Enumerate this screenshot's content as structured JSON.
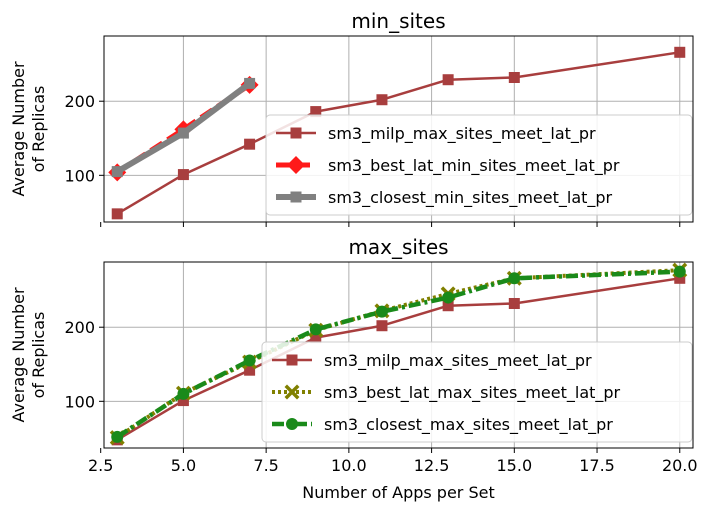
{
  "chart_data": [
    {
      "type": "line",
      "title": "min_sites",
      "xlabel": "",
      "ylabel": "Average Number\nof Replicas",
      "xlim": [
        2.6,
        20.4
      ],
      "ylim": [
        37,
        288
      ],
      "yticks": [
        100,
        200
      ],
      "xticks": [
        2.5,
        5.0,
        7.5,
        10.0,
        12.5,
        15.0,
        17.5,
        20.0
      ],
      "xtick_labels_shown": false,
      "grid": true,
      "legend_position": "lower-right",
      "series": [
        {
          "name": "sm3_milp_max_sites_meet_lat_pr",
          "x": [
            3,
            5,
            7,
            9,
            11,
            13,
            15,
            20
          ],
          "y": [
            48,
            101,
            142,
            186,
            202,
            229,
            232,
            266
          ],
          "color": "#a83e3e",
          "marker": "square",
          "line": "solid"
        },
        {
          "name": "sm3_best_lat_min_sites_meet_lat_pr",
          "x": [
            3,
            5,
            7
          ],
          "y": [
            104,
            162,
            222
          ],
          "color": "#ff1a1a",
          "marker": "diamond",
          "line": "dashed"
        },
        {
          "name": "sm3_closest_min_sites_meet_lat_pr",
          "x": [
            3,
            5,
            7
          ],
          "y": [
            105,
            157,
            224
          ],
          "color": "#808080",
          "marker": "square",
          "line": "solid-thick"
        }
      ]
    },
    {
      "type": "line",
      "title": "max_sites",
      "xlabel": "Number of Apps per Set",
      "ylabel": "Average Number\nof Replicas",
      "xlim": [
        2.6,
        20.4
      ],
      "ylim": [
        37,
        288
      ],
      "yticks": [
        100,
        200
      ],
      "xticks": [
        2.5,
        5.0,
        7.5,
        10.0,
        12.5,
        15.0,
        17.5,
        20.0
      ],
      "xtick_labels": [
        "2.5",
        "5.0",
        "7.5",
        "10.0",
        "12.5",
        "15.0",
        "17.5",
        "20.0"
      ],
      "grid": true,
      "legend_position": "lower-right",
      "series": [
        {
          "name": "sm3_milp_max_sites_meet_lat_pr",
          "x": [
            3,
            5,
            7,
            9,
            11,
            13,
            15,
            20
          ],
          "y": [
            48,
            101,
            142,
            186,
            202,
            229,
            232,
            266
          ],
          "color": "#a83e3e",
          "marker": "square",
          "line": "solid"
        },
        {
          "name": "sm3_best_lat_max_sites_meet_lat_pr",
          "x": [
            3,
            5,
            7,
            9,
            11,
            13,
            15,
            20
          ],
          "y": [
            51,
            111,
            153,
            196,
            222,
            245,
            266,
            277
          ],
          "color": "#808000",
          "marker": "x",
          "line": "dotted"
        },
        {
          "name": "sm3_closest_max_sites_meet_lat_pr",
          "x": [
            3,
            5,
            7,
            9,
            11,
            13,
            15,
            20
          ],
          "y": [
            52,
            110,
            155,
            197,
            221,
            240,
            266,
            275
          ],
          "color": "#1a8a1a",
          "marker": "circle",
          "line": "dashdot"
        }
      ]
    }
  ]
}
